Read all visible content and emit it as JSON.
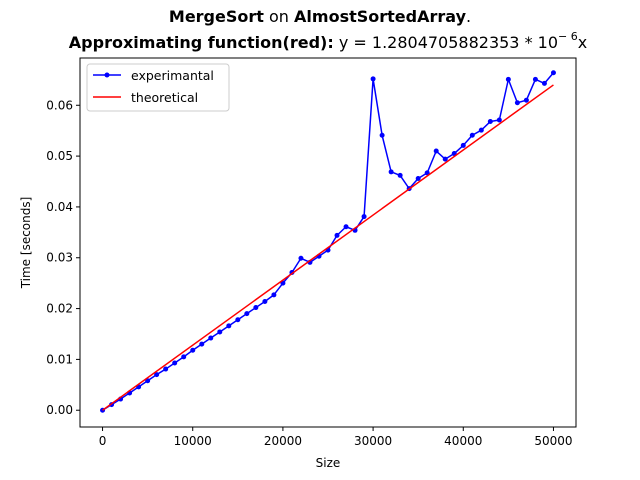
{
  "chart_data": {
    "type": "line",
    "title_line1": {
      "algorithm": "MergeSort",
      "connector": " on ",
      "dataset": "AlmostSortedArray",
      "end": "."
    },
    "title_line2": {
      "label": "Approximating function(red):",
      "formula": " y = 1.2804705882353 * 10",
      "exponent": "− 6",
      "variable": "x"
    },
    "xlabel": "Size",
    "ylabel": "Time [seconds]",
    "xlim": [
      -2500,
      52500
    ],
    "ylim": [
      -0.0033,
      0.0693
    ],
    "x_ticks": [
      0,
      10000,
      20000,
      30000,
      40000,
      50000
    ],
    "x_tick_labels": [
      "0",
      "10000",
      "20000",
      "30000",
      "40000",
      "50000"
    ],
    "y_ticks": [
      0.0,
      0.01,
      0.02,
      0.03,
      0.04,
      0.05,
      0.06
    ],
    "y_tick_labels": [
      "0.00",
      "0.01",
      "0.02",
      "0.03",
      "0.04",
      "0.05",
      "0.06"
    ],
    "grid": false,
    "legend_position": "top-left",
    "series": [
      {
        "name": "experimantal",
        "color": "#0000ff",
        "marker": "dot",
        "x": [
          0,
          1000,
          2000,
          3000,
          4000,
          5000,
          6000,
          7000,
          8000,
          9000,
          10000,
          11000,
          12000,
          13000,
          14000,
          15000,
          16000,
          17000,
          18000,
          19000,
          20000,
          21000,
          22000,
          23000,
          24000,
          25000,
          26000,
          27000,
          28000,
          29000,
          30000,
          31000,
          32000,
          33000,
          34000,
          35000,
          36000,
          37000,
          38000,
          39000,
          40000,
          41000,
          42000,
          43000,
          44000,
          45000,
          46000,
          47000,
          48000,
          49000,
          50000
        ],
        "y": [
          0.0,
          0.0011,
          0.0022,
          0.0034,
          0.0046,
          0.0058,
          0.007,
          0.0081,
          0.0093,
          0.0105,
          0.0118,
          0.013,
          0.0142,
          0.0154,
          0.0166,
          0.0178,
          0.019,
          0.0202,
          0.0214,
          0.0227,
          0.025,
          0.0271,
          0.0299,
          0.0291,
          0.0303,
          0.0315,
          0.0344,
          0.0361,
          0.0354,
          0.0381,
          0.0652,
          0.0541,
          0.0469,
          0.0462,
          0.0436,
          0.0456,
          0.0467,
          0.051,
          0.0494,
          0.0505,
          0.0521,
          0.0541,
          0.0551,
          0.0568,
          0.0571,
          0.0651,
          0.0605,
          0.061,
          0.0651,
          0.0643,
          0.0664
        ]
      },
      {
        "name": "theoretical",
        "color": "#ff0000",
        "marker": "none",
        "x": [
          0,
          50000
        ],
        "y": [
          0.0,
          0.064
        ]
      }
    ]
  }
}
